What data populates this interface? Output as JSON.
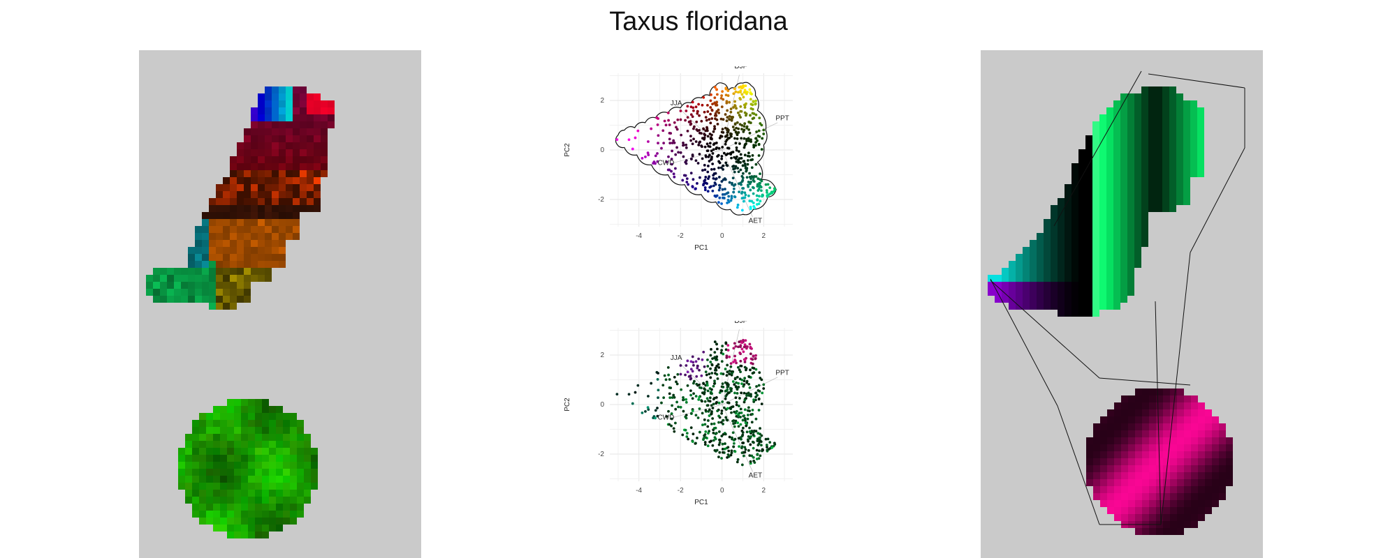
{
  "figure": {
    "title": "Taxus floridana"
  },
  "chart_data": [
    {
      "type": "scatter",
      "panel": "pca-top",
      "title": "",
      "xlabel": "PC1",
      "ylabel": "PC2",
      "xlim": [
        -5.4,
        3.4
      ],
      "ylim": [
        -3.1,
        3.1
      ],
      "xticks": [
        -4,
        -2,
        0,
        2
      ],
      "yticks": [
        -2,
        0,
        2
      ],
      "grid": true,
      "hull": true,
      "variables": [
        {
          "name": "DJF",
          "x": 0.9,
          "y": 3.3
        },
        {
          "name": "JJA",
          "x": -2.2,
          "y": 1.8
        },
        {
          "name": "PPT",
          "x": 2.9,
          "y": 1.2
        },
        {
          "name": "CWD",
          "x": -2.7,
          "y": -0.6
        },
        {
          "name": "AET",
          "x": 1.6,
          "y": -2.95
        }
      ],
      "color_scheme": "hue"
    },
    {
      "type": "scatter",
      "panel": "pca-bottom",
      "title": "",
      "xlabel": "PC1",
      "ylabel": "PC2",
      "xlim": [
        -5.4,
        3.4
      ],
      "ylim": [
        -3.1,
        3.1
      ],
      "xticks": [
        -4,
        -2,
        0,
        2
      ],
      "yticks": [
        -2,
        0,
        2
      ],
      "grid": true,
      "hull": false,
      "variables": [
        {
          "name": "DJF",
          "x": 0.9,
          "y": 3.3
        },
        {
          "name": "JJA",
          "x": -2.2,
          "y": 1.8
        },
        {
          "name": "PPT",
          "x": 2.9,
          "y": 1.2
        },
        {
          "name": "CWD",
          "x": -2.7,
          "y": -0.6
        },
        {
          "name": "AET",
          "x": 1.6,
          "y": -2.95
        }
      ],
      "color_scheme": "greens-magenta"
    }
  ]
}
